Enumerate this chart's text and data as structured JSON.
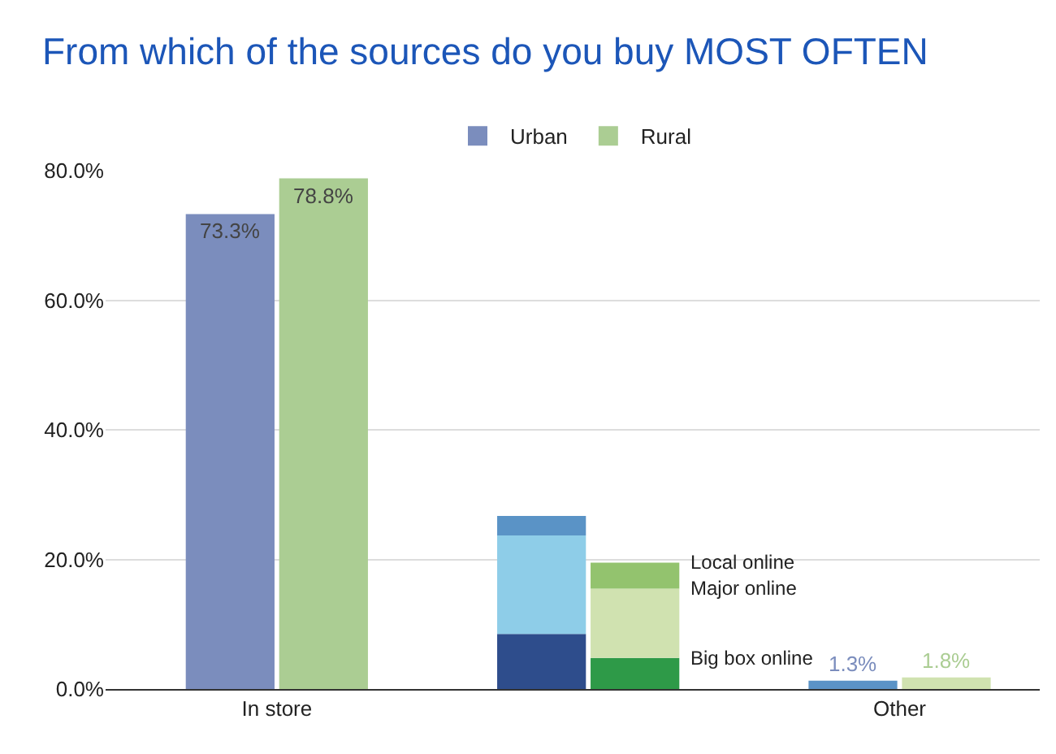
{
  "chart_data": {
    "type": "bar",
    "title": "From which of the sources do you buy MOST OFTEN",
    "categories": [
      "In store",
      null,
      "Other"
    ],
    "series": [
      {
        "name": "Urban",
        "color": "#7b8dbd",
        "colors": [
          "#7b8dbd",
          null,
          "#5b93c7"
        ],
        "values": [
          73.3,
          null,
          1.3
        ],
        "value_labels": [
          "73.3%",
          null,
          "1.3%"
        ]
      },
      {
        "name": "Rural",
        "color": "#abcd93",
        "colors": [
          "#abcd93",
          null,
          "#d0e2b0"
        ],
        "values": [
          78.8,
          null,
          1.8
        ],
        "value_labels": [
          "78.8%",
          null,
          "1.8%"
        ]
      },
      {
        "color": "#2e4d8c",
        "values": [
          null,
          8.5,
          null
        ],
        "base": [
          null,
          0,
          null
        ]
      },
      {
        "name": "Big box online",
        "color": "#2e9a48",
        "values": [
          null,
          4.8,
          null
        ],
        "base": [
          null,
          0,
          null
        ]
      },
      {
        "color": "#8ecde8",
        "values": [
          null,
          15.2,
          null
        ],
        "base": [
          null,
          8.5,
          null
        ]
      },
      {
        "name": "Major online",
        "color": "#d0e2b0",
        "values": [
          null,
          10.7,
          null
        ],
        "base": [
          null,
          4.8,
          null
        ]
      },
      {
        "color": "#5a93c6",
        "values": [
          null,
          3.0,
          null
        ],
        "base": [
          null,
          23.7,
          null
        ]
      },
      {
        "name": "Local online",
        "color": "#93c36e",
        "values": [
          null,
          4.0,
          null
        ],
        "base": [
          null,
          15.5,
          null
        ]
      }
    ],
    "ylim": [
      0,
      80
    ],
    "yticks": [
      {
        "value": 0,
        "label": "0.0%"
      },
      {
        "value": 20,
        "label": "20.0%"
      },
      {
        "value": 40,
        "label": "40.0%"
      },
      {
        "value": 60,
        "label": "60.0%"
      },
      {
        "value": 80,
        "label": "80.0%"
      }
    ],
    "grid": "y",
    "legend": "top"
  }
}
